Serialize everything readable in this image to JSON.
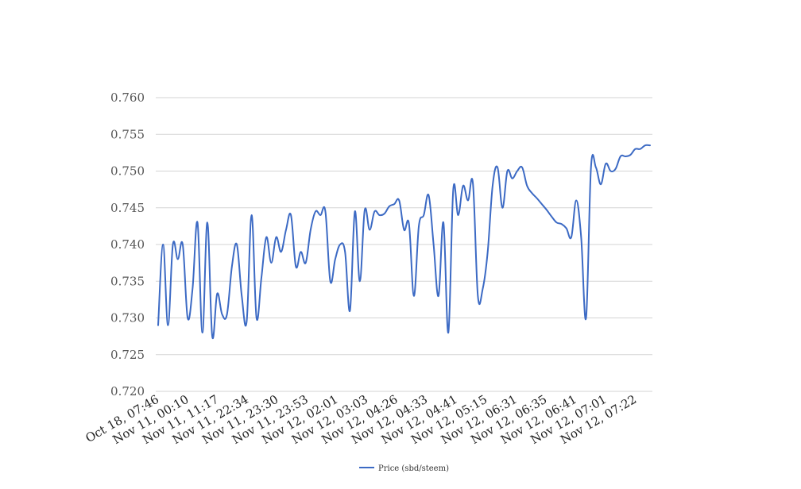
{
  "chart_data": {
    "type": "line",
    "title": "",
    "xlabel": "",
    "ylabel": "",
    "ylim": [
      0.72,
      0.76
    ],
    "yticks": [
      "0.720",
      "0.725",
      "0.730",
      "0.735",
      "0.740",
      "0.745",
      "0.750",
      "0.755",
      "0.760"
    ],
    "xtick_labels": [
      "Oct 18, 07:46",
      "Nov 11, 00:10",
      "Nov 11, 11:17",
      "Nov 11, 22:34",
      "Nov 11, 23:30",
      "Nov 11, 23:53",
      "Nov 12, 02:01",
      "Nov 12, 03:03",
      "Nov 12, 04:26",
      "Nov 12, 04:33",
      "Nov 12, 04:41",
      "Nov 12, 05:15",
      "Nov 12, 06:31",
      "Nov 12, 06:35",
      "Nov 12, 06:41",
      "Nov 12, 07:01",
      "Nov 12, 07:22"
    ],
    "grid": true,
    "legend_position": "bottom",
    "series": [
      {
        "name": "Price (sbd/steem)",
        "color": "#3c6ac4",
        "values": [
          0.729,
          0.74,
          0.729,
          0.74,
          0.738,
          0.74,
          0.73,
          0.734,
          0.743,
          0.728,
          0.743,
          0.7275,
          0.7333,
          0.7305,
          0.7305,
          0.737,
          0.74,
          0.733,
          0.7295,
          0.744,
          0.73,
          0.7355,
          0.741,
          0.7375,
          0.741,
          0.739,
          0.742,
          0.744,
          0.737,
          0.739,
          0.7375,
          0.742,
          0.7445,
          0.744,
          0.7445,
          0.735,
          0.738,
          0.74,
          0.739,
          0.731,
          0.7445,
          0.735,
          0.7447,
          0.742,
          0.7445,
          0.744,
          0.7442,
          0.7452,
          0.7455,
          0.746,
          0.742,
          0.7428,
          0.733,
          0.7425,
          0.744,
          0.7467,
          0.74,
          0.733,
          0.743,
          0.728,
          0.7475,
          0.744,
          0.748,
          0.746,
          0.7483,
          0.733,
          0.734,
          0.739,
          0.748,
          0.7505,
          0.745,
          0.75,
          0.749,
          0.75,
          0.7505,
          0.748,
          0.747,
          0.7463,
          0.7455,
          0.7447,
          0.7438,
          0.743,
          0.7428,
          0.7422,
          0.741,
          0.746,
          0.741,
          0.73,
          0.7505,
          0.7505,
          0.7482,
          0.751,
          0.75,
          0.7503,
          0.752,
          0.752,
          0.7522,
          0.753,
          0.753,
          0.7535,
          0.7535
        ]
      }
    ]
  }
}
